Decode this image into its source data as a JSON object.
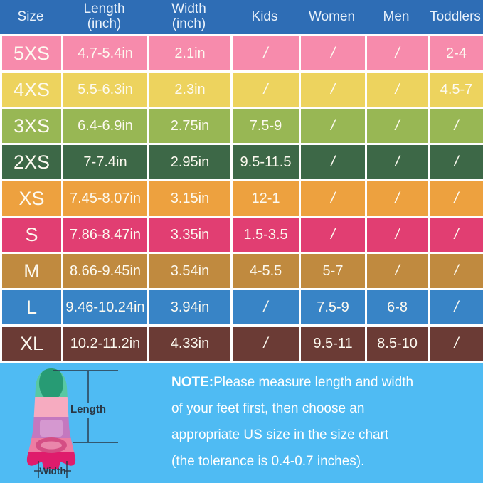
{
  "colors": {
    "header_bg": "#2e6db5",
    "grid_line": "#ffffff",
    "bottom_bg": "#4fbbf3",
    "header_text": "#eaf2fb",
    "cell_text": "#fdfaf0",
    "dimension_label": "#2a3744"
  },
  "chart_data": {
    "type": "table",
    "title": "Swim fin size chart",
    "columns": [
      "Size",
      "Length\n(inch)",
      "Width\n(inch)",
      "Kids",
      "Women",
      "Men",
      "Toddlers"
    ],
    "rows": [
      [
        "5XS",
        "4.7-5.4in",
        "2.1in",
        "/",
        "/",
        "/",
        "2-4"
      ],
      [
        "4XS",
        "5.5-6.3in",
        "2.3in",
        "/",
        "/",
        "/",
        "4.5-7"
      ],
      [
        "3XS",
        "6.4-6.9in",
        "2.75in",
        "7.5-9",
        "/",
        "/",
        "/"
      ],
      [
        "2XS",
        "7-7.4in",
        "2.95in",
        "9.5-11.5",
        "/",
        "/",
        "/"
      ],
      [
        "XS",
        "7.45-8.07in",
        "3.15in",
        "12-1",
        "/",
        "/",
        "/"
      ],
      [
        "S",
        "7.86-8.47in",
        "3.35in",
        "1.5-3.5",
        "/",
        "/",
        "/"
      ],
      [
        "M",
        "8.66-9.45in",
        "3.54in",
        "4-5.5",
        "5-7",
        "/",
        "/"
      ],
      [
        "L",
        "9.46-10.24in",
        "3.94in",
        "/",
        "7.5-9",
        "6-8",
        "/"
      ],
      [
        "XL",
        "10.2-11.2in",
        "4.33in",
        "/",
        "9.5-11",
        "8.5-10",
        "/"
      ]
    ],
    "row_colors": [
      "#f78bac",
      "#edd35e",
      "#98b754",
      "#3d6847",
      "#eda13f",
      "#e13e72",
      "#c08a3f",
      "#3884c6",
      "#6b3b35"
    ]
  },
  "note": {
    "label": "NOTE:",
    "text": "Please measure length and width\nof your feet first, then choose an\nappropriate US size in the size chart\n(the tolerance is 0.4-0.7 inches)."
  },
  "fin": {
    "length_label": "Length",
    "width_label": "Width"
  }
}
